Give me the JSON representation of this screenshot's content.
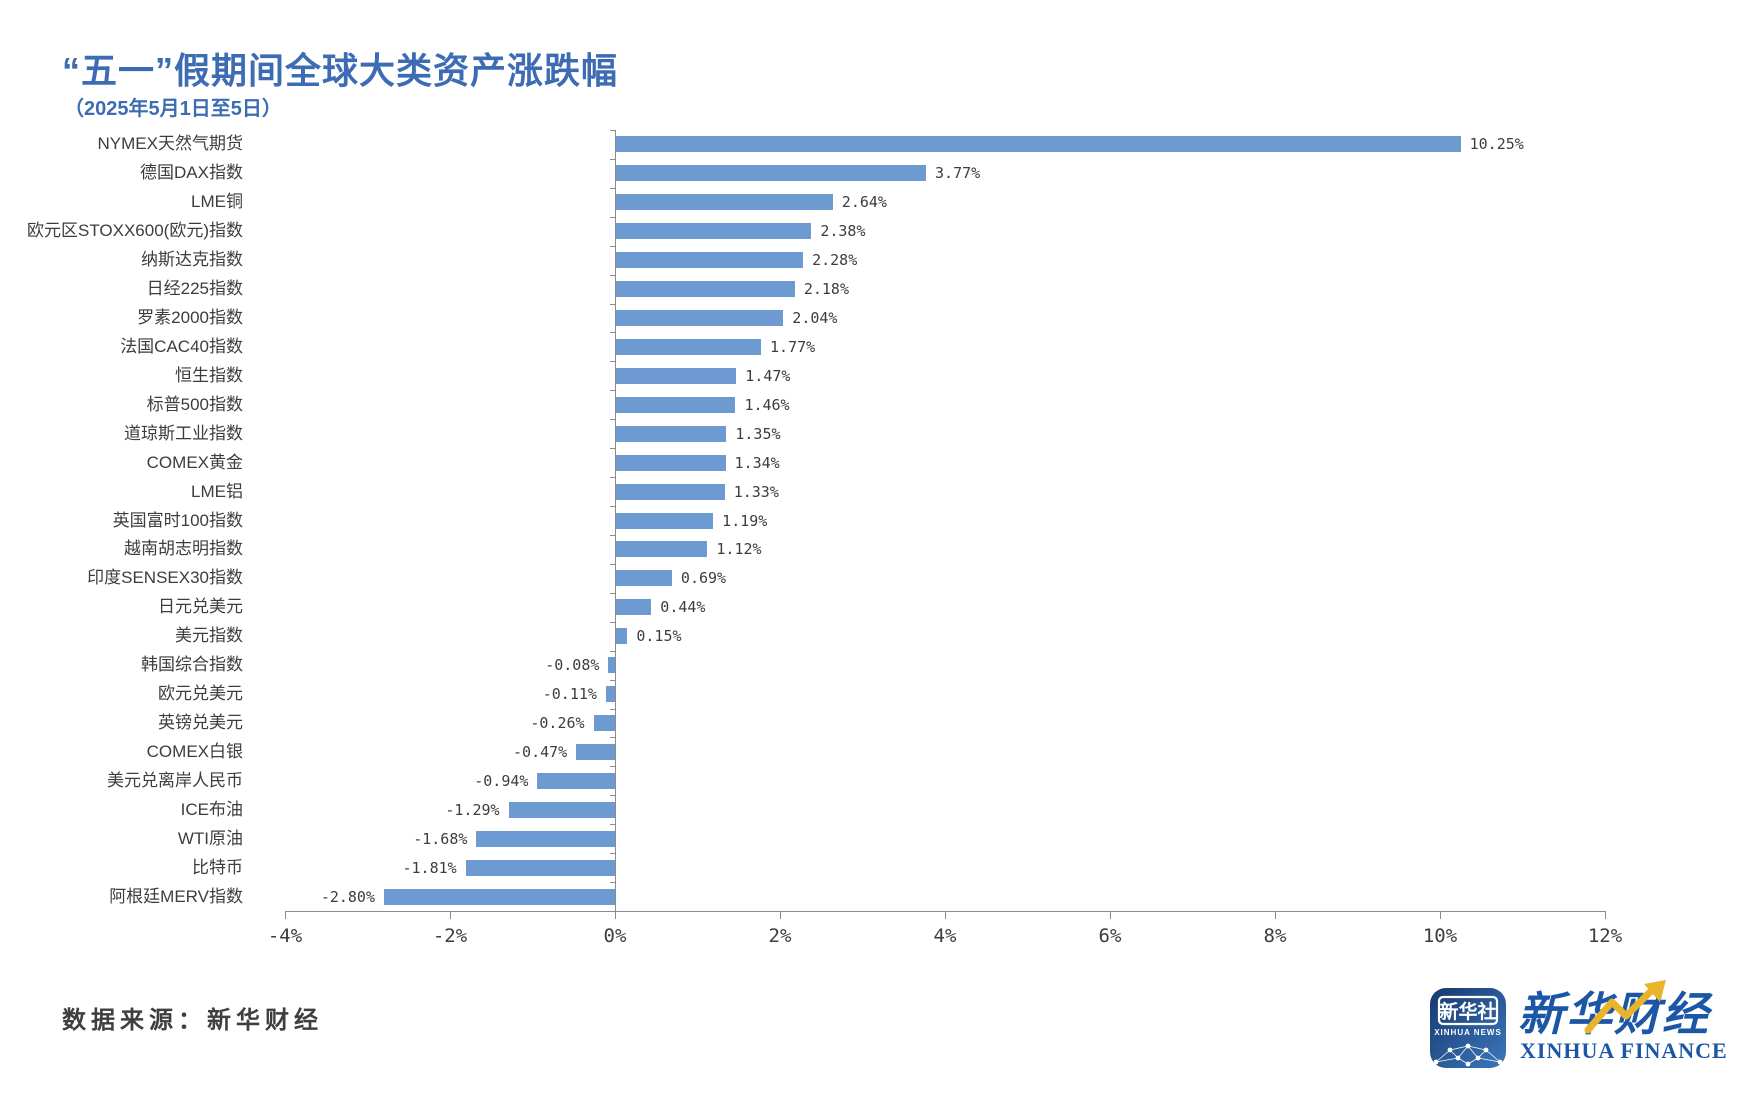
{
  "page": {
    "background": "#ffffff"
  },
  "header": {
    "title": "“五一”假期间全球大类资产涨跌幅",
    "subtitle": "（2025年5月1日至5日）",
    "title_color": "#3D6CB4"
  },
  "chart_data": {
    "type": "bar",
    "orientation": "horizontal",
    "title": "“五一”假期间全球大类资产涨跌幅",
    "subtitle": "（2025年5月1日至5日）",
    "categories": [
      "NYMEX天然气期货",
      "德国DAX指数",
      "LME铜",
      "欧元区STOXX600(欧元)指数",
      "纳斯达克指数",
      "日经225指数",
      "罗素2000指数",
      "法国CAC40指数",
      "恒生指数",
      "标普500指数",
      "道琼斯工业指数",
      "COMEX黄金",
      "LME铝",
      "英国富时100指数",
      "越南胡志明指数",
      "印度SENSEX30指数",
      "日元兑美元",
      "美元指数",
      "韩国综合指数",
      "欧元兑美元",
      "英镑兑美元",
      "COMEX白银",
      "美元兑离岸人民币",
      "ICE布油",
      "WTI原油",
      "比特币",
      "阿根廷MERV指数"
    ],
    "values": [
      10.25,
      3.77,
      2.64,
      2.38,
      2.28,
      2.18,
      2.04,
      1.77,
      1.47,
      1.46,
      1.35,
      1.34,
      1.33,
      1.19,
      1.12,
      0.69,
      0.44,
      0.15,
      -0.08,
      -0.11,
      -0.26,
      -0.47,
      -0.94,
      -1.29,
      -1.68,
      -1.81,
      -2.8
    ],
    "value_labels": [
      "10.25%",
      "3.77%",
      "2.64%",
      "2.38%",
      "2.28%",
      "2.18%",
      "2.04%",
      "1.77%",
      "1.47%",
      "1.46%",
      "1.35%",
      "1.34%",
      "1.33%",
      "1.19%",
      "1.12%",
      "0.69%",
      "0.44%",
      "0.15%",
      "-0.08%",
      "-0.11%",
      "-0.26%",
      "-0.47%",
      "-0.94%",
      "-1.29%",
      "-1.68%",
      "-1.81%",
      "-2.80%"
    ],
    "xlim": [
      -4,
      12
    ],
    "x_tick_values": [
      -4,
      -2,
      0,
      2,
      4,
      6,
      8,
      10,
      12
    ],
    "x_tick_labels": [
      "-4%",
      "-2%",
      "0%",
      "2%",
      "4%",
      "6%",
      "8%",
      "10%",
      "12%"
    ],
    "grid": "off",
    "legend": "none",
    "bar_color": "#6D9BD1",
    "axis_color": "#8C8C8C",
    "label_color": "#3D3D3D"
  },
  "footer": {
    "source": "数据来源：新华财经"
  },
  "branding": {
    "news_icon": {
      "line1": "新华社",
      "line2": "XINHUA NEWS",
      "blue_dark": "#16386F",
      "blue_light": "#3C78BB"
    },
    "finance_logo": {
      "cn": "新华财经",
      "en": "XINHUA FINANCE",
      "blue": "#1B57A6",
      "gold": "#E9B32A"
    }
  }
}
